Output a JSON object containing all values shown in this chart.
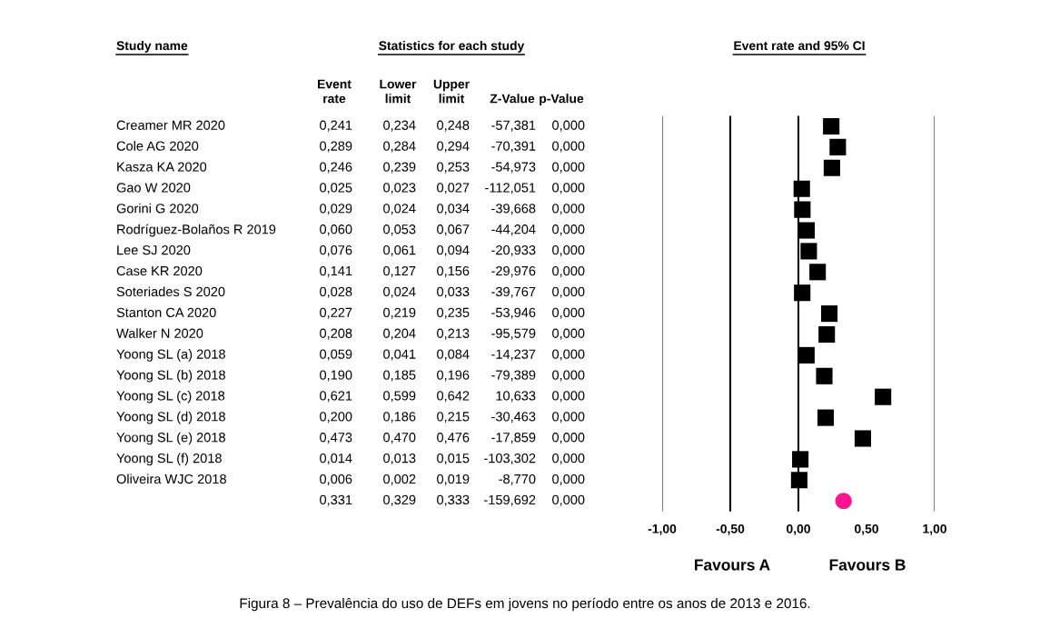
{
  "chart_data": [
    {
      "type": "other",
      "title": "Statistics for each study",
      "ylabel": "Study name",
      "categories": [
        "Event\nrate",
        "Lower\nlimit",
        "Upper\nlimit",
        "Z-Value",
        "p-Value"
      ],
      "y_categories": [
        "Creamer MR 2020",
        "Cole AG 2020",
        "Kasza KA 2020",
        "Gao W 2020",
        "Gorini G 2020",
        "Rodríguez-Bolaños R 2019",
        "Lee SJ 2020",
        "Case KR 2020",
        "Soteriades S 2020",
        "Stanton CA 2020",
        "Walker N 2020",
        "Yoong SL (a) 2018",
        "Yoong SL (b) 2018",
        "Yoong SL (c) 2018",
        "Yoong SL (d) 2018",
        "Yoong SL (e) 2018",
        "Yoong SL (f) 2018",
        "Oliveira WJC 2018",
        null
      ],
      "cell_labels": [
        [
          "0,241",
          "0,234",
          "0,248",
          "-57,381",
          "0,000"
        ],
        [
          "0,289",
          "0,284",
          "0,294",
          "-70,391",
          "0,000"
        ],
        [
          "0,246",
          "0,239",
          "0,253",
          "-54,973",
          "0,000"
        ],
        [
          "0,025",
          "0,023",
          "0,027",
          "-112,051",
          "0,000"
        ],
        [
          "0,029",
          "0,024",
          "0,034",
          "-39,668",
          "0,000"
        ],
        [
          "0,060",
          "0,053",
          "0,067",
          "-44,204",
          "0,000"
        ],
        [
          "0,076",
          "0,061",
          "0,094",
          "-20,933",
          "0,000"
        ],
        [
          "0,141",
          "0,127",
          "0,156",
          "-29,976",
          "0,000"
        ],
        [
          "0,028",
          "0,024",
          "0,033",
          "-39,767",
          "0,000"
        ],
        [
          "0,227",
          "0,219",
          "0,235",
          "-53,946",
          "0,000"
        ],
        [
          "0,208",
          "0,204",
          "0,213",
          "-95,579",
          "0,000"
        ],
        [
          "0,059",
          "0,041",
          "0,084",
          "-14,237",
          "0,000"
        ],
        [
          "0,190",
          "0,185",
          "0,196",
          "-79,389",
          "0,000"
        ],
        [
          "0,621",
          "0,599",
          "0,642",
          "10,633",
          "0,000"
        ],
        [
          "0,200",
          "0,186",
          "0,215",
          "-30,463",
          "0,000"
        ],
        [
          "0,473",
          "0,470",
          "0,476",
          "-17,859",
          "0,000"
        ],
        [
          "0,014",
          "0,013",
          "0,015",
          "-103,302",
          "0,000"
        ],
        [
          "0,006",
          "0,002",
          "0,019",
          "-8,770",
          "0,000"
        ],
        [
          "0,331",
          "0,329",
          "0,333",
          "-159,692",
          "0,000"
        ]
      ]
    },
    {
      "type": "scatter",
      "orientation": "horizontal",
      "title": "Event rate and 95% CI",
      "categories": [
        null,
        null,
        null,
        null,
        null,
        null,
        null,
        null,
        null,
        null,
        null,
        null,
        null,
        null,
        null,
        null,
        null,
        null,
        null
      ],
      "series": [
        {
          "color": "#000000",
          "marker": "square",
          "values": [
            0.241,
            0.289,
            0.246,
            0.025,
            0.029,
            0.06,
            0.076,
            0.141,
            0.028,
            0.227,
            0.208,
            0.059,
            0.19,
            0.621,
            0.2,
            0.473,
            0.014,
            0.006,
            null
          ]
        },
        {
          "color": "#ff1493",
          "marker": "circle",
          "values": [
            null,
            null,
            null,
            null,
            null,
            null,
            null,
            null,
            null,
            null,
            null,
            null,
            null,
            null,
            null,
            null,
            null,
            null,
            0.331
          ]
        }
      ],
      "xlim": [
        -1,
        1
      ],
      "xticks": [
        {
          "value": -1,
          "label": "-1,00"
        },
        {
          "value": -0.5,
          "label": "-0,50"
        },
        {
          "value": 0,
          "label": "0,00"
        },
        {
          "value": 0.5,
          "label": "0,50"
        },
        {
          "value": 1,
          "label": "1,00"
        }
      ],
      "tick_labels": "x",
      "ref_lines": [
        {
          "axis": "x",
          "value": -1,
          "color": "#808080"
        },
        {
          "axis": "x",
          "value": -0.5,
          "color": "#000000"
        },
        {
          "axis": "x",
          "value": 0,
          "color": "#000000"
        },
        {
          "axis": "x",
          "value": 1,
          "color": "#808080"
        }
      ],
      "annotations": [
        "Favours A",
        "Favours B",
        "Figura 8 – Prevalência do uso de DEFs em jovens no período entre os anos de 2013 e 2016."
      ]
    }
  ]
}
